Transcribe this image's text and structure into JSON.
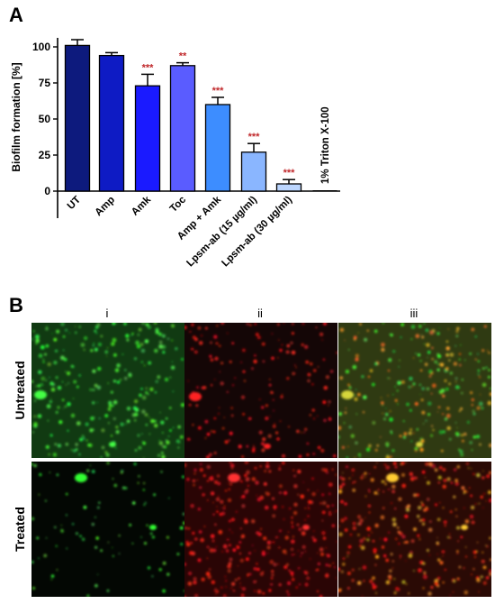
{
  "panelA": {
    "letter": "A",
    "chart_data": {
      "type": "bar",
      "ylabel": "Biofilm formation [%]",
      "ylim": [
        0,
        110
      ],
      "yticks": [
        0,
        25,
        50,
        75,
        100
      ],
      "categories": [
        "UT",
        "Amp",
        "Amk",
        "Toc",
        "Amp + Amk",
        "Lpsm-ab (15 µg/ml)",
        "Lpsm-ab (30 µg/ml)"
      ],
      "values": [
        101,
        94,
        73,
        87,
        60,
        27,
        5
      ],
      "errors": [
        4,
        2,
        8,
        2,
        5,
        6,
        3
      ],
      "significance": [
        "",
        "",
        "***",
        "**",
        "***",
        "***",
        "***"
      ],
      "colors": [
        "#0d1a7d",
        "#0e1bc4",
        "#1a1aff",
        "#5a5cff",
        "#3d8dff",
        "#8ab6ff",
        "#bcd6ff"
      ],
      "extra_label": "1% Triton X-100",
      "extra_value": 0
    },
    "sig_color": "#c0282b",
    "extra_color": "#8b1a1a"
  },
  "panelB": {
    "letter": "B",
    "columns": [
      "i",
      "ii",
      "iii"
    ],
    "rows": [
      "Untreated",
      "Treated"
    ]
  }
}
